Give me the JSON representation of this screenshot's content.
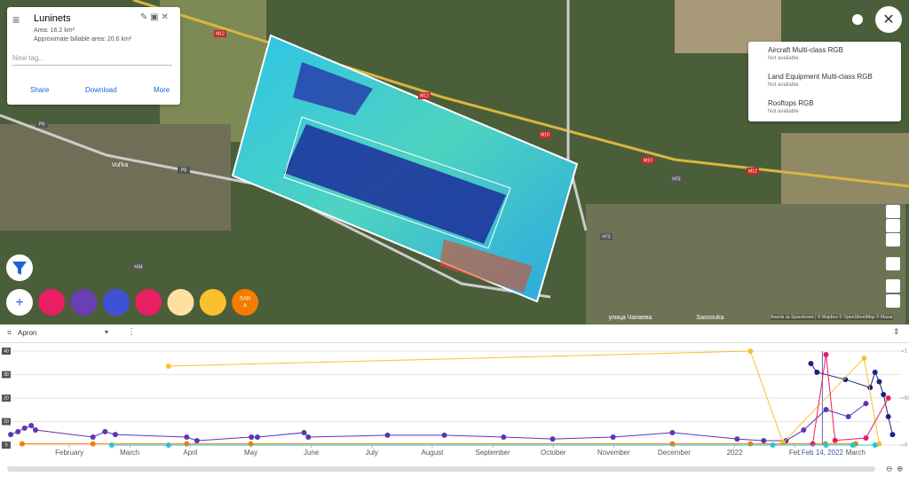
{
  "project_card": {
    "title": "Luninets",
    "area": "Area: 16.2 km²",
    "billable": "Approximate billable area: 20.6 km²",
    "tag_placeholder": "New tag...",
    "actions": [
      "Share",
      "Download",
      "More"
    ]
  },
  "layers": [
    {
      "name": "Aircraft Multi-class RGB",
      "status": "Not available"
    },
    {
      "name": "Land Equipment Multi-class RGB",
      "status": "Not available"
    },
    {
      "name": "Rooftops RGB",
      "status": "Not available"
    }
  ],
  "map_labels": [
    "M12",
    "M12",
    "M10",
    "M10",
    "M12",
    "P8",
    "P8",
    "H73",
    "H73",
    "H34",
    "Vul'ka",
    "Sasnouka",
    "улица Чапаева"
  ],
  "attribution": "Аналіз за Spaceknow | © Mapbox © OpenStreetMap © Maxar",
  "sar_button": {
    "label": "SAR",
    "sub": "A"
  },
  "timeline_header": {
    "aoi": "Apron"
  },
  "chart_data": {
    "type": "line",
    "xlim": [
      0,
      14.75
    ],
    "xticks": [
      {
        "value": 1,
        "label": "February"
      },
      {
        "value": 2,
        "label": "March"
      },
      {
        "value": 3,
        "label": "April"
      },
      {
        "value": 4,
        "label": "May"
      },
      {
        "value": 5,
        "label": "June"
      },
      {
        "value": 6,
        "label": "July"
      },
      {
        "value": 7,
        "label": "August"
      },
      {
        "value": 8,
        "label": "September"
      },
      {
        "value": 9,
        "label": "October"
      },
      {
        "value": 10,
        "label": "November"
      },
      {
        "value": 11,
        "label": "December"
      },
      {
        "value": 12,
        "label": "2022"
      },
      {
        "value": 13,
        "label": "Feb"
      },
      {
        "value": 14,
        "label": "March"
      }
    ],
    "cursor": {
      "value": 13.45,
      "label": "Feb 14, 2022"
    },
    "ylim": [
      0,
      40
    ],
    "yticks": [
      0,
      10,
      20,
      30,
      40
    ],
    "y2lim": [
      0,
      1
    ],
    "y2ticks": [
      0,
      0.5,
      1
    ],
    "series": [
      {
        "color": "#5e35b1",
        "x": [
          0.03,
          0.15,
          0.26,
          0.37,
          0.44,
          1.39,
          1.59,
          1.76,
          2.94,
          3.11,
          4.01,
          4.11,
          4.88,
          4.95,
          6.26,
          7.2,
          8.18,
          8.99,
          9.99,
          10.97,
          12.04,
          12.48,
          12.85,
          13.14,
          13.51,
          13.88,
          14.17
        ],
        "values": [
          4.5,
          5.7,
          7.2,
          8.3,
          6.4,
          3.4,
          5.7,
          4.5,
          3.4,
          1.9,
          3.4,
          3.4,
          5.3,
          3.4,
          4.2,
          4.2,
          3.4,
          2.6,
          3.4,
          5.3,
          2.6,
          1.9,
          1.9,
          6.4,
          15.1,
          12.1,
          17.7
        ]
      },
      {
        "color": "#1a237e",
        "x": [
          13.26,
          13.36,
          13.83,
          14.24,
          14.32,
          14.39,
          14.46,
          14.54,
          14.61
        ],
        "values": [
          34.7,
          31,
          27.9,
          24.5,
          31,
          27,
          21.5,
          12.1,
          4.5
        ]
      },
      {
        "color": "#fbc02d",
        "x": [
          2.64,
          12.26,
          12.8,
          14.14,
          14.39
        ],
        "values": [
          33.6,
          40,
          1,
          37,
          0.5
        ]
      },
      {
        "color": "#f57c00",
        "x": [
          0.22,
          1.39,
          2.94,
          4.0,
          10.97,
          12.26,
          13.5,
          14.0
        ],
        "values": [
          0.5,
          0.5,
          0.5,
          0.5,
          0.5,
          0.5,
          0.5,
          0.5
        ]
      },
      {
        "color": "#e91e63",
        "x": [
          13.29,
          13.51,
          13.66,
          14.17,
          14.54
        ],
        "values": [
          0.5,
          38.5,
          2,
          3,
          20
        ]
      },
      {
        "color": "#26c6da",
        "axis": "y2",
        "x": [
          1.7,
          2.64,
          12.63,
          13.51,
          13.95,
          14.32
        ],
        "values": [
          0,
          0,
          0,
          0,
          0,
          0
        ]
      }
    ]
  }
}
